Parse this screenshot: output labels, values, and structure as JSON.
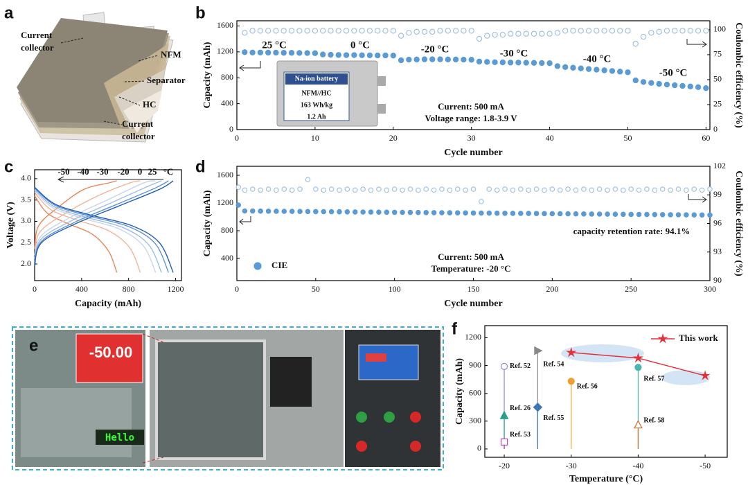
{
  "figure": {
    "panel_a": {
      "panel": "a",
      "labels": [
        [
          "Current",
          "collector"
        ],
        [
          "NFM"
        ],
        [
          "Separator"
        ],
        [
          "HC"
        ],
        [
          "Current",
          "collector"
        ]
      ]
    },
    "panel_e": {
      "panel": "e",
      "display": "-50.00",
      "sign": "Hello"
    }
  },
  "chart_data": [
    {
      "panel": "b",
      "type": "scatter",
      "xlabel": "Cycle number",
      "ylabel": "Capacity (mAh)",
      "y2label": "Coulombic efficiency (%)",
      "xlim": [
        0,
        60.5
      ],
      "xticks": [
        0,
        10,
        20,
        30,
        40,
        50,
        60
      ],
      "ylim": [
        0,
        1680
      ],
      "yticks": [
        0,
        400,
        800,
        1200,
        1600
      ],
      "y2lim": [
        0,
        109
      ],
      "y2ticks": [
        0,
        25,
        50,
        75,
        100
      ],
      "series": [
        {
          "color": "#5b9bd5",
          "filled": true,
          "x": [
            1,
            2,
            3,
            4,
            5,
            6,
            7,
            8,
            9,
            10,
            11,
            12,
            13,
            14,
            15,
            16,
            17,
            18,
            19,
            20,
            21,
            22,
            23,
            24,
            25,
            26,
            27,
            28,
            29,
            30,
            31,
            32,
            33,
            34,
            35,
            36,
            37,
            38,
            39,
            40,
            41,
            42,
            43,
            44,
            45,
            46,
            47,
            48,
            49,
            50,
            51,
            52,
            53,
            54,
            55,
            56,
            57,
            58,
            59,
            60
          ],
          "values": [
            1195,
            1190,
            1190,
            1188,
            1188,
            1185,
            1185,
            1183,
            1182,
            1180,
            1160,
            1155,
            1152,
            1150,
            1150,
            1148,
            1147,
            1145,
            1145,
            1143,
            1070,
            1080,
            1082,
            1085,
            1085,
            1085,
            1083,
            1082,
            1080,
            1078,
            1050,
            1045,
            1040,
            1038,
            1035,
            1035,
            1032,
            1030,
            1028,
            1025,
            980,
            965,
            955,
            945,
            935,
            925,
            915,
            905,
            895,
            885,
            760,
            735,
            720,
            705,
            695,
            685,
            675,
            665,
            655,
            640
          ]
        },
        {
          "axis": "y2",
          "color": "#9fc0e4",
          "filled": false,
          "x": [
            1,
            2,
            3,
            4,
            5,
            6,
            7,
            8,
            9,
            10,
            11,
            12,
            13,
            14,
            15,
            16,
            17,
            18,
            19,
            20,
            21,
            22,
            23,
            24,
            25,
            26,
            27,
            28,
            29,
            30,
            31,
            32,
            33,
            34,
            35,
            36,
            37,
            38,
            39,
            40,
            41,
            42,
            43,
            44,
            45,
            46,
            47,
            48,
            49,
            50,
            51,
            52,
            53,
            54,
            55,
            56,
            57,
            58,
            59,
            60
          ],
          "values": [
            97,
            99,
            99,
            99,
            99,
            99,
            99,
            99,
            99,
            99,
            99,
            99,
            99,
            99,
            99,
            99,
            99,
            99,
            99,
            99,
            94,
            97,
            98,
            98,
            98,
            99,
            99,
            99,
            99,
            99,
            91,
            94,
            95,
            95,
            96,
            96,
            96,
            96,
            96,
            96,
            97,
            99,
            99,
            99,
            99,
            99,
            99,
            99,
            99,
            99,
            86,
            93,
            97,
            98,
            99,
            99,
            99,
            99,
            99,
            99
          ]
        }
      ],
      "annotations": [
        "25 °C",
        "0 °C",
        "-20 °C",
        "-30 °C",
        "-40 °C",
        "-50 °C",
        "Current: 500 mA",
        "Voltage range: 1.8-3.9 V"
      ],
      "inset": [
        "Na-ion battery",
        "NFM//HC",
        "163 Wh/kg",
        "1.2 Ah"
      ]
    },
    {
      "panel": "c",
      "type": "line",
      "xlabel": "Capacity (mAh)",
      "ylabel": "Voltage (V)",
      "xlim": [
        0,
        1250
      ],
      "xticks": [
        0,
        400,
        800,
        1200
      ],
      "ylim": [
        1.61,
        4.21
      ],
      "yticks": [
        {
          "value": 2,
          "label": "2.0"
        },
        2.5,
        {
          "value": 3,
          "label": "3.0"
        },
        3.5,
        {
          "value": 4,
          "label": "4.0"
        }
      ],
      "legend": "top",
      "legend_unit": "°C",
      "series": [
        {
          "name": "-50",
          "color": "#e8875d",
          "discharge": {
            "x": [
              0,
              105,
              280,
              490,
              630,
              700
            ],
            "values": [
              3.6,
              3.2,
              2.95,
              2.7,
              2.3,
              1.8
            ]
          },
          "charge": {
            "x": [
              0,
              35,
              210,
              420,
              630,
              700
            ],
            "values": [
              2.35,
              2.9,
              3.35,
              3.75,
              3.9,
              3.95
            ]
          }
        },
        {
          "name": "-40",
          "color": "#f2b49a",
          "discharge": {
            "x": [
              0,
              135,
              360,
              630,
              810,
              900
            ],
            "values": [
              3.68,
              3.28,
              3.03,
              2.78,
              2.38,
              1.8
            ]
          },
          "charge": {
            "x": [
              0,
              45,
              270,
              540,
              810,
              900
            ],
            "values": [
              2.2,
              2.75,
              3.2,
              3.6,
              3.9,
              3.95
            ]
          }
        },
        {
          "name": "-30",
          "color": "#c9d6ec",
          "discharge": {
            "x": [
              0,
              155,
              412,
              721,
              927,
              1030
            ],
            "values": [
              3.72,
              3.32,
              3.07,
              2.82,
              2.42,
              1.8
            ]
          },
          "charge": {
            "x": [
              0,
              52,
              309,
              618,
              927,
              1030
            ],
            "values": [
              2.12,
              2.65,
              3.1,
              3.5,
              3.9,
              3.95
            ]
          }
        },
        {
          "name": "-20",
          "color": "#9dbde6",
          "discharge": {
            "x": [
              0,
              162,
              432,
              756,
              972,
              1080
            ],
            "values": [
              3.75,
              3.35,
              3.1,
              2.85,
              2.45,
              1.8
            ]
          },
          "charge": {
            "x": [
              0,
              54,
              324,
              648,
              972,
              1080
            ],
            "values": [
              2.05,
              2.58,
              3.03,
              3.43,
              3.83,
              3.95
            ]
          }
        },
        {
          "name": "0",
          "color": "#5f93d3",
          "discharge": {
            "x": [
              0,
              171,
              456,
              798,
              1026,
              1140
            ],
            "values": [
              3.78,
              3.38,
              3.13,
              2.88,
              2.48,
              1.8
            ]
          },
          "charge": {
            "x": [
              0,
              57,
              342,
              684,
              1026,
              1140
            ],
            "values": [
              2.0,
              2.53,
              2.98,
              3.38,
              3.78,
              3.95
            ]
          }
        },
        {
          "name": "25",
          "color": "#1f5fb4",
          "discharge": {
            "x": [
              0,
              177,
              472,
              826,
              1062,
              1180
            ],
            "values": [
              3.8,
              3.4,
              3.15,
              2.9,
              2.5,
              1.8
            ]
          },
          "charge": {
            "x": [
              0,
              59,
              354,
              708,
              1062,
              1180
            ],
            "values": [
              1.95,
              2.5,
              2.95,
              3.35,
              3.75,
              3.95
            ]
          }
        }
      ]
    },
    {
      "panel": "d",
      "type": "scatter",
      "xlabel": "Cycle number",
      "ylabel": "Capacity (mAh)",
      "y2label": "Coulombic efficiency (%)",
      "xlim": [
        0,
        300
      ],
      "xticks": [
        0,
        50,
        100,
        150,
        200,
        250,
        300
      ],
      "ylim": [
        80,
        1730
      ],
      "yticks": [
        400,
        800,
        1200,
        1600
      ],
      "y2lim": [
        90,
        102
      ],
      "y2ticks": [
        90,
        93,
        96,
        99,
        102
      ],
      "legend": "lower left",
      "series": [
        {
          "name": "CIE",
          "color": "#5b9bd5",
          "filled": true,
          "x": [
            1,
            5,
            10,
            15,
            20,
            25,
            30,
            35,
            40,
            45,
            50,
            55,
            60,
            65,
            70,
            75,
            80,
            85,
            90,
            95,
            100,
            105,
            110,
            115,
            120,
            125,
            130,
            135,
            140,
            145,
            150,
            155,
            160,
            165,
            170,
            175,
            180,
            185,
            190,
            195,
            200,
            205,
            210,
            215,
            220,
            225,
            230,
            235,
            240,
            245,
            250,
            255,
            260,
            265,
            270,
            275,
            280,
            285,
            290,
            295,
            300
          ],
          "values": [
            1170,
            1085,
            1084,
            1083,
            1082,
            1081,
            1080,
            1079,
            1078,
            1077,
            1076,
            1075,
            1074,
            1073,
            1072,
            1071,
            1070,
            1069,
            1068,
            1067,
            1066,
            1065,
            1064,
            1063,
            1062,
            1061,
            1060,
            1059,
            1058,
            1057,
            1056,
            1055,
            1054,
            1053,
            1052,
            1051,
            1050,
            1049,
            1048,
            1047,
            1046,
            1045,
            1044,
            1043,
            1042,
            1041,
            1040,
            1039,
            1038,
            1037,
            1036,
            1035,
            1034,
            1033,
            1032,
            1031,
            1030,
            1029,
            1028,
            1027,
            1026
          ]
        },
        {
          "axis": "y2",
          "color": "#9fc0e4",
          "filled": false,
          "x": [
            1,
            5,
            10,
            15,
            20,
            25,
            30,
            35,
            40,
            45,
            50,
            55,
            60,
            65,
            70,
            75,
            80,
            85,
            90,
            95,
            100,
            105,
            110,
            115,
            120,
            125,
            130,
            135,
            140,
            145,
            150,
            155,
            160,
            165,
            170,
            175,
            180,
            185,
            190,
            195,
            200,
            205,
            210,
            215,
            220,
            225,
            230,
            235,
            240,
            245,
            250,
            255,
            260,
            265,
            270,
            275,
            280,
            285,
            290,
            295,
            300
          ],
          "values": [
            99.8,
            99.5,
            99.6,
            99.5,
            99.6,
            99.5,
            99.6,
            99.5,
            99.6,
            100.6,
            99.6,
            99.5,
            99.6,
            99.5,
            99.6,
            99.5,
            99.6,
            99.5,
            99.6,
            99.5,
            99.6,
            99.5,
            99.6,
            99.5,
            99.6,
            99.5,
            99.6,
            99.5,
            99.6,
            99.5,
            99.6,
            98.3,
            99.6,
            99.5,
            99.6,
            99.5,
            99.6,
            99.5,
            99.6,
            99.5,
            99.6,
            99.5,
            99.6,
            99.5,
            99.6,
            99.5,
            99.6,
            99.5,
            99.6,
            99.5,
            99.6,
            99.5,
            99.6,
            99.5,
            99.6,
            99.5,
            99.6,
            99.5,
            99.6,
            99.5,
            99.6
          ]
        }
      ],
      "annotations": [
        "capacity retention rate: 94.1%",
        "Current: 500 mA",
        "Temperature: -20 °C"
      ]
    },
    {
      "panel": "f",
      "type": "scatter",
      "xlabel": "Temperature (°C)",
      "ylabel": "Capacity (mAh)",
      "xlim": [
        -17.1,
        -53.3
      ],
      "xticks": [
        -20,
        -30,
        -40,
        -50
      ],
      "ylim": [
        -90,
        1330
      ],
      "yticks": [
        0,
        300,
        600,
        900,
        1200
      ],
      "legend": "upper right",
      "series": [
        {
          "name": "Ref. 52",
          "color": "#8a8ad8",
          "marker": "circle",
          "filled": false,
          "label_at_point": true,
          "drop_line": true,
          "x": [
            -20
          ],
          "values": [
            890
          ]
        },
        {
          "name": "Ref. 26",
          "color": "#2a9d8f",
          "marker": "triangle",
          "filled": true,
          "label_at_point": true,
          "drop_line": true,
          "x": [
            -20
          ],
          "values": [
            360
          ]
        },
        {
          "name": "Ref. 53",
          "color": "#c040c0",
          "marker": "square",
          "filled": false,
          "label_at_point": true,
          "drop_line": true,
          "x": [
            -20
          ],
          "values": [
            75
          ]
        },
        {
          "name": "Ref. 54",
          "color": "#888888",
          "marker": "triangle-right",
          "filled": true,
          "label_at_point": true,
          "drop_line": true,
          "x": [
            -25
          ],
          "values": [
            1060
          ]
        },
        {
          "name": "Ref. 55",
          "color": "#3c78b4",
          "marker": "diamond",
          "filled": true,
          "label_at_point": true,
          "drop_line": true,
          "x": [
            -25
          ],
          "values": [
            450
          ]
        },
        {
          "name": "Ref. 56",
          "color": "#f0a030",
          "marker": "circle",
          "filled": true,
          "label_at_point": true,
          "drop_line": true,
          "x": [
            -30
          ],
          "values": [
            730
          ]
        },
        {
          "name": "Ref. 57",
          "color": "#4ab8b0",
          "marker": "circle",
          "filled": true,
          "label_at_point": true,
          "drop_line": true,
          "x": [
            -40
          ],
          "values": [
            880
          ]
        },
        {
          "name": "Ref. 58",
          "color": "#d07030",
          "marker": "triangle",
          "filled": false,
          "label_at_point": true,
          "drop_line": true,
          "x": [
            -40
          ],
          "values": [
            260
          ]
        },
        {
          "name": "This work",
          "color": "#e0323c",
          "marker": "star",
          "filled": true,
          "line": true,
          "x": [
            -30,
            -40,
            -50
          ],
          "values": [
            1040,
            980,
            790
          ]
        }
      ]
    }
  ]
}
